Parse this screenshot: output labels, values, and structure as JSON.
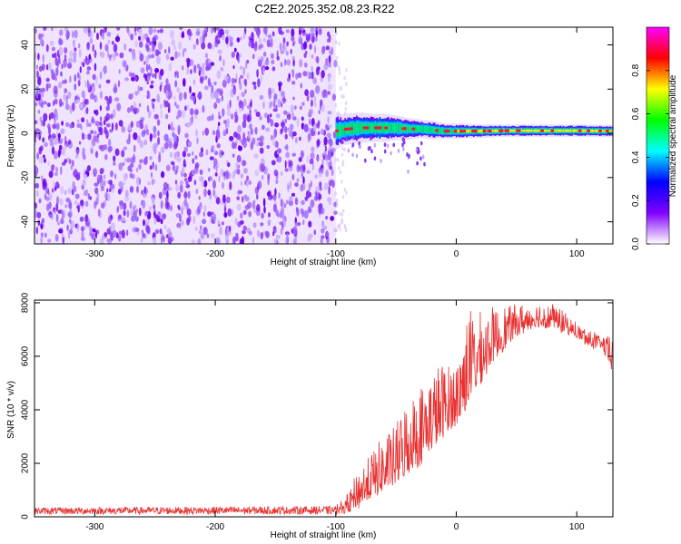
{
  "title": "C2E2.2025.352.08.23.R22",
  "chart_data": [
    {
      "type": "heatmap",
      "name": "spectrogram",
      "title": "C2E2.2025.352.08.23.R22",
      "xlabel": "Height of straight line (km)",
      "ylabel": "Frequency (Hz)",
      "xlim": [
        -350,
        130
      ],
      "ylim": [
        -50,
        48
      ],
      "xticks": [
        -300,
        -200,
        -100,
        0,
        100
      ],
      "yticks": [
        -40,
        -20,
        0,
        20,
        40
      ],
      "noise_region_x": [
        -350,
        -100
      ],
      "signal_line": {
        "x": [
          -100,
          -95,
          -90,
          -80,
          -70,
          -60,
          -50,
          -40,
          -30,
          -20,
          -10,
          0,
          20,
          40,
          60,
          80,
          100,
          130
        ],
        "freq": [
          1.0,
          1.5,
          2.0,
          2.5,
          2.5,
          2.5,
          2.5,
          2.0,
          2.0,
          1.5,
          1.0,
          1.0,
          1.0,
          1.2,
          1.2,
          1.2,
          1.2,
          1.0
        ],
        "bandwidth": [
          6,
          5,
          5,
          5,
          4.5,
          4.5,
          4,
          3.5,
          3,
          3,
          2.5,
          2.5,
          2.2,
          2,
          2,
          2,
          2,
          2
        ]
      },
      "colorbar": {
        "label": "Normalized spectral amplitude",
        "ticks": [
          0.0,
          0.2,
          0.4,
          0.6,
          0.8
        ],
        "range": [
          0,
          1
        ],
        "colors": [
          "#ffffff",
          "#8000ff",
          "#0000ff",
          "#00ffff",
          "#00ff00",
          "#ffff00",
          "#ff0000",
          "#ff00ff"
        ]
      }
    },
    {
      "type": "line",
      "name": "snr",
      "xlabel": "Height of straight line (km)",
      "ylabel": "SNR (10 * v/v)",
      "xlim": [
        -350,
        130
      ],
      "ylim": [
        0,
        8100
      ],
      "xticks": [
        -300,
        -200,
        -100,
        0,
        100
      ],
      "yticks": [
        0,
        2000,
        4000,
        6000,
        8000
      ],
      "color": "#e83030",
      "envelope": {
        "x": [
          -350,
          -100,
          -90,
          -80,
          -70,
          -60,
          -50,
          -40,
          -30,
          -20,
          -10,
          0,
          10,
          20,
          30,
          40,
          50,
          60,
          70,
          80,
          90,
          100,
          110,
          120,
          130
        ],
        "base": [
          150,
          150,
          200,
          400,
          700,
          1000,
          1200,
          1600,
          2000,
          2500,
          3000,
          3500,
          4200,
          5000,
          5800,
          6300,
          6800,
          7000,
          7100,
          7100,
          6900,
          6700,
          6400,
          6300,
          5500
        ],
        "peak": [
          350,
          400,
          800,
          1900,
          2500,
          3000,
          3500,
          4500,
          4900,
          5500,
          5800,
          5800,
          7800,
          7600,
          7800,
          7900,
          7900,
          8000,
          8000,
          8000,
          7600,
          7200,
          7000,
          6800,
          6700
        ]
      }
    }
  ]
}
